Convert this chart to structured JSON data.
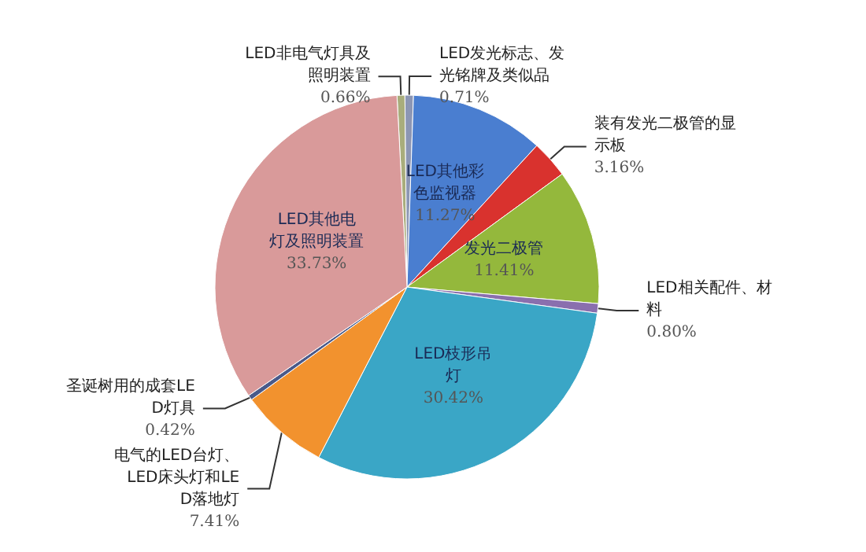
{
  "chart_data": {
    "type": "pie",
    "categories": [
      "LED非电气灯具及照明装置",
      "LED发光标志、发光铭牌及类似品",
      "LED其他彩色监视器",
      "装有发光二极管的显示板",
      "发光二极管",
      "LED相关配件、材料",
      "LED枝形吊灯",
      "电气的LED台灯、LED床头灯和LED落地灯",
      "圣诞树用的成套LED灯具",
      "LED其他电灯及照明装置"
    ],
    "values": [
      0.66,
      0.71,
      11.27,
      3.16,
      11.41,
      0.8,
      30.42,
      7.41,
      0.42,
      33.73
    ],
    "value_labels": [
      "0.66%",
      "0.71%",
      "11.27%",
      "3.16%",
      "11.41%",
      "0.80%",
      "30.42%",
      "7.41%",
      "0.42%",
      "33.73%"
    ],
    "colors": [
      "#a9ad7c",
      "#8c96b4",
      "#4a7ed0",
      "#d9322e",
      "#94b83c",
      "#8a6fae",
      "#3aa6c6",
      "#f2922e",
      "#4a5a8a",
      "#d99a9a"
    ]
  }
}
